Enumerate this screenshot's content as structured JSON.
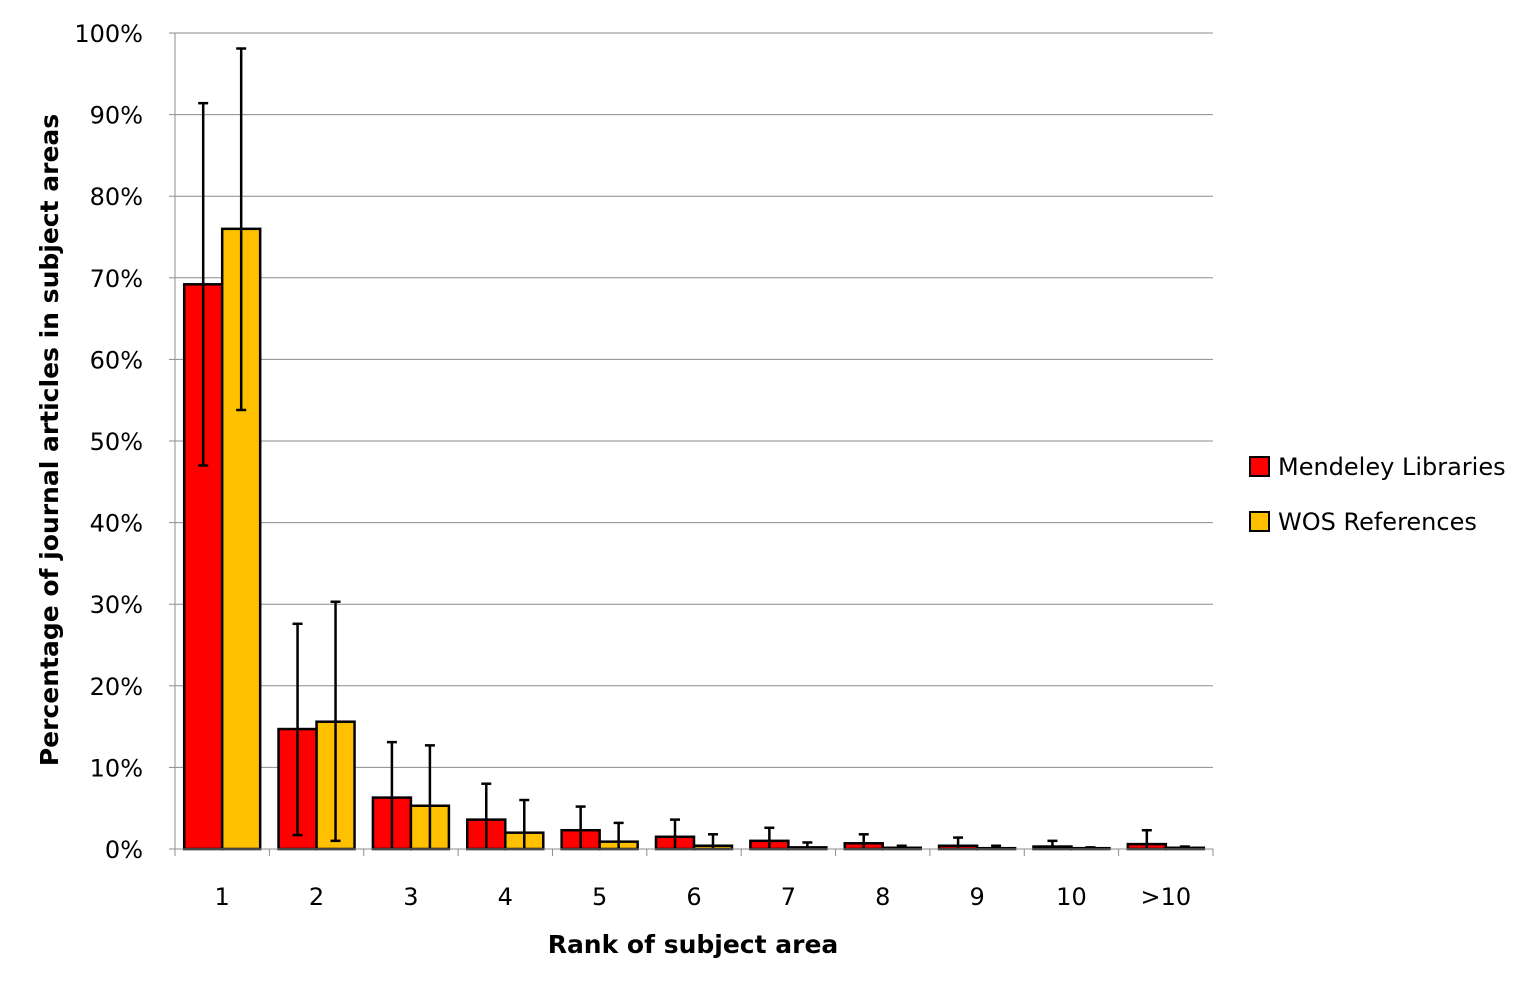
{
  "chart_data": {
    "type": "bar",
    "title": "",
    "xlabel": "Rank of subject area",
    "ylabel": "Percentage of journal articles in subject areas",
    "categories": [
      "1",
      "2",
      "3",
      "4",
      "5",
      "6",
      "7",
      "8",
      "9",
      "10",
      ">10"
    ],
    "ylim": [
      0,
      100
    ],
    "yticks": [
      "0%",
      "10%",
      "20%",
      "30%",
      "40%",
      "50%",
      "60%",
      "70%",
      "80%",
      "90%",
      "100%"
    ],
    "grid": true,
    "legend_position": "right",
    "series": [
      {
        "name": "Mendeley Libraries",
        "color": "#ff0000",
        "values": [
          69.2,
          14.7,
          6.3,
          3.6,
          2.3,
          1.5,
          1.0,
          0.7,
          0.4,
          0.3,
          0.6
        ],
        "error_low": [
          47.0,
          1.7,
          0,
          0,
          0,
          0,
          0,
          0,
          0,
          0,
          0
        ],
        "error_high": [
          91.4,
          27.6,
          13.1,
          8.0,
          5.2,
          3.6,
          2.6,
          1.8,
          1.4,
          1.0,
          2.3
        ]
      },
      {
        "name": "WOS References",
        "color": "#ffc000",
        "values": [
          76.0,
          15.6,
          5.3,
          2.0,
          0.9,
          0.4,
          0.2,
          0.15,
          0.1,
          0.1,
          0.15
        ],
        "error_low": [
          53.8,
          1.0,
          0,
          0,
          0,
          0,
          0,
          0,
          0,
          0,
          0
        ],
        "error_high": [
          98.1,
          30.3,
          12.7,
          6.0,
          3.2,
          1.8,
          0.8,
          0.4,
          0.4,
          0.2,
          0.3
        ]
      }
    ]
  }
}
